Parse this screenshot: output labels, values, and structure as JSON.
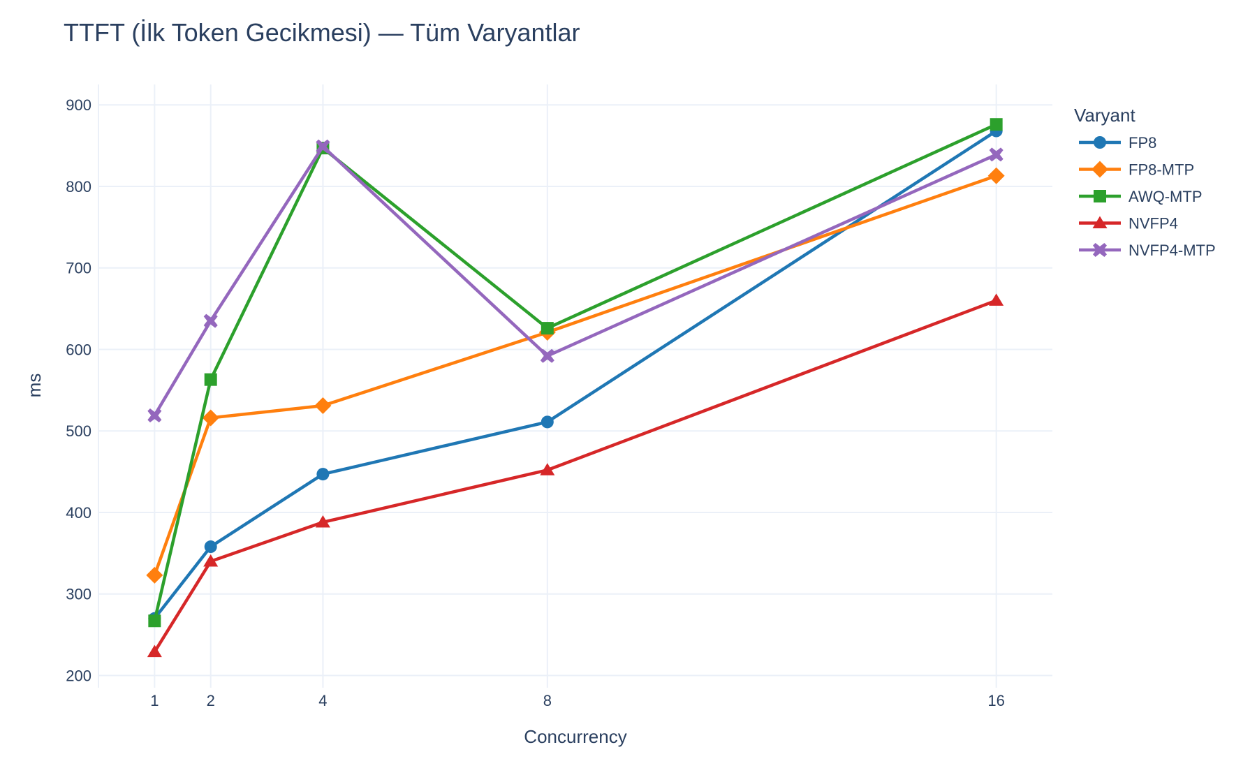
{
  "chart_data": {
    "type": "line",
    "title": "TTFT (İlk Token Gecikmesi) — Tüm Varyantlar",
    "xlabel": "Concurrency",
    "ylabel": "ms",
    "x": [
      1,
      2,
      4,
      8,
      16
    ],
    "x_tick_labels": [
      "1",
      "2",
      "4",
      "8",
      "16"
    ],
    "y_ticks": [
      200,
      300,
      400,
      500,
      600,
      700,
      800,
      900
    ],
    "ylim": [
      185,
      925
    ],
    "xlim": [
      0,
      17
    ],
    "grid": true,
    "legend": {
      "title": "Varyant",
      "placement": "right"
    },
    "series": [
      {
        "name": "FP8",
        "color": "#1f77b4",
        "marker": "circle",
        "values": [
          270,
          358,
          447,
          511,
          868
        ]
      },
      {
        "name": "FP8-MTP",
        "color": "#ff7f0e",
        "marker": "diamond",
        "values": [
          323,
          516,
          531,
          621,
          813
        ]
      },
      {
        "name": "AWQ-MTP",
        "color": "#2ca02c",
        "marker": "square",
        "values": [
          267,
          563,
          847,
          626,
          876
        ]
      },
      {
        "name": "NVFP4",
        "color": "#d62728",
        "marker": "triangle",
        "values": [
          229,
          340,
          388,
          452,
          660
        ]
      },
      {
        "name": "NVFP4-MTP",
        "color": "#9467bd",
        "marker": "x",
        "values": [
          519,
          635,
          849,
          592,
          839
        ]
      }
    ]
  }
}
